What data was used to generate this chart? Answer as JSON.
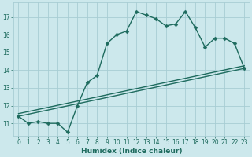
{
  "xlabel": "Humidex (Indice chaleur)",
  "bg_color": "#cce8ec",
  "grid_color": "#a8cdd4",
  "line_color": "#1e6b5e",
  "markersize": 2.5,
  "linewidth": 1.0,
  "xlim": [
    -0.5,
    23.5
  ],
  "ylim": [
    10.3,
    17.8
  ],
  "yticks": [
    11,
    12,
    13,
    14,
    15,
    16,
    17
  ],
  "xticks": [
    0,
    1,
    2,
    3,
    4,
    5,
    6,
    7,
    8,
    9,
    10,
    11,
    12,
    13,
    14,
    15,
    16,
    17,
    18,
    19,
    20,
    21,
    22,
    23
  ],
  "line1_x": [
    0,
    1,
    2,
    3,
    4,
    5,
    6,
    7,
    8,
    9,
    10,
    11,
    12,
    13,
    14,
    15,
    16,
    17,
    18,
    19,
    20,
    21,
    22,
    23
  ],
  "line1_y": [
    11.4,
    11.0,
    11.1,
    11.0,
    11.0,
    10.5,
    12.0,
    13.3,
    13.7,
    15.5,
    16.0,
    16.2,
    17.3,
    17.1,
    16.9,
    16.5,
    16.6,
    17.3,
    16.4,
    15.3,
    15.8,
    15.8,
    15.5,
    14.1
  ],
  "line2_x": [
    0,
    5,
    23
  ],
  "line2_y": [
    11.4,
    10.5,
    14.1
  ],
  "line3_x": [
    0,
    5,
    23
  ],
  "line3_y": [
    11.4,
    10.5,
    14.1
  ]
}
